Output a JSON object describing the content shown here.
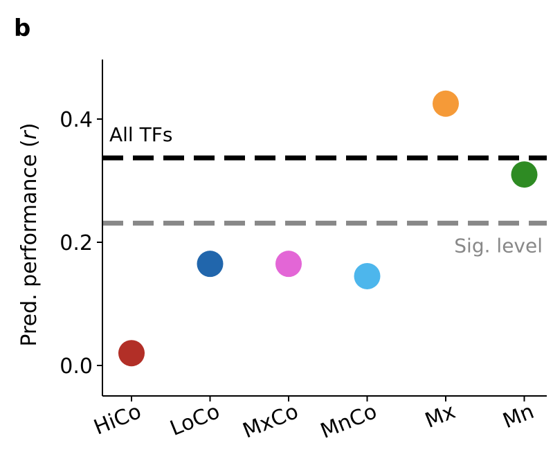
{
  "panel_label": "b",
  "chart_data": {
    "type": "scatter",
    "categories": [
      "HiCo",
      "LoCo",
      "MxCo",
      "MnCo",
      "Mx",
      "Mn"
    ],
    "values": [
      0.02,
      0.165,
      0.165,
      0.145,
      0.425,
      0.31
    ],
    "colors": [
      "#B22F27",
      "#2166AC",
      "#E366D6",
      "#4DB6EC",
      "#F59A38",
      "#2E8B23"
    ],
    "ylabel": "Pred. performance (r)",
    "ylim": [
      -0.05,
      0.5
    ],
    "yticks": [
      0.0,
      0.2,
      0.4
    ],
    "ytick_labels": [
      "0.0",
      "0.2",
      "0.4"
    ],
    "reference_lines": [
      {
        "label": "All TFs",
        "value": 0.337,
        "color": "#000000",
        "label_position": "above-left"
      },
      {
        "label": "Sig. level",
        "value": 0.231,
        "color": "#888888",
        "label_position": "below-right"
      }
    ]
  }
}
